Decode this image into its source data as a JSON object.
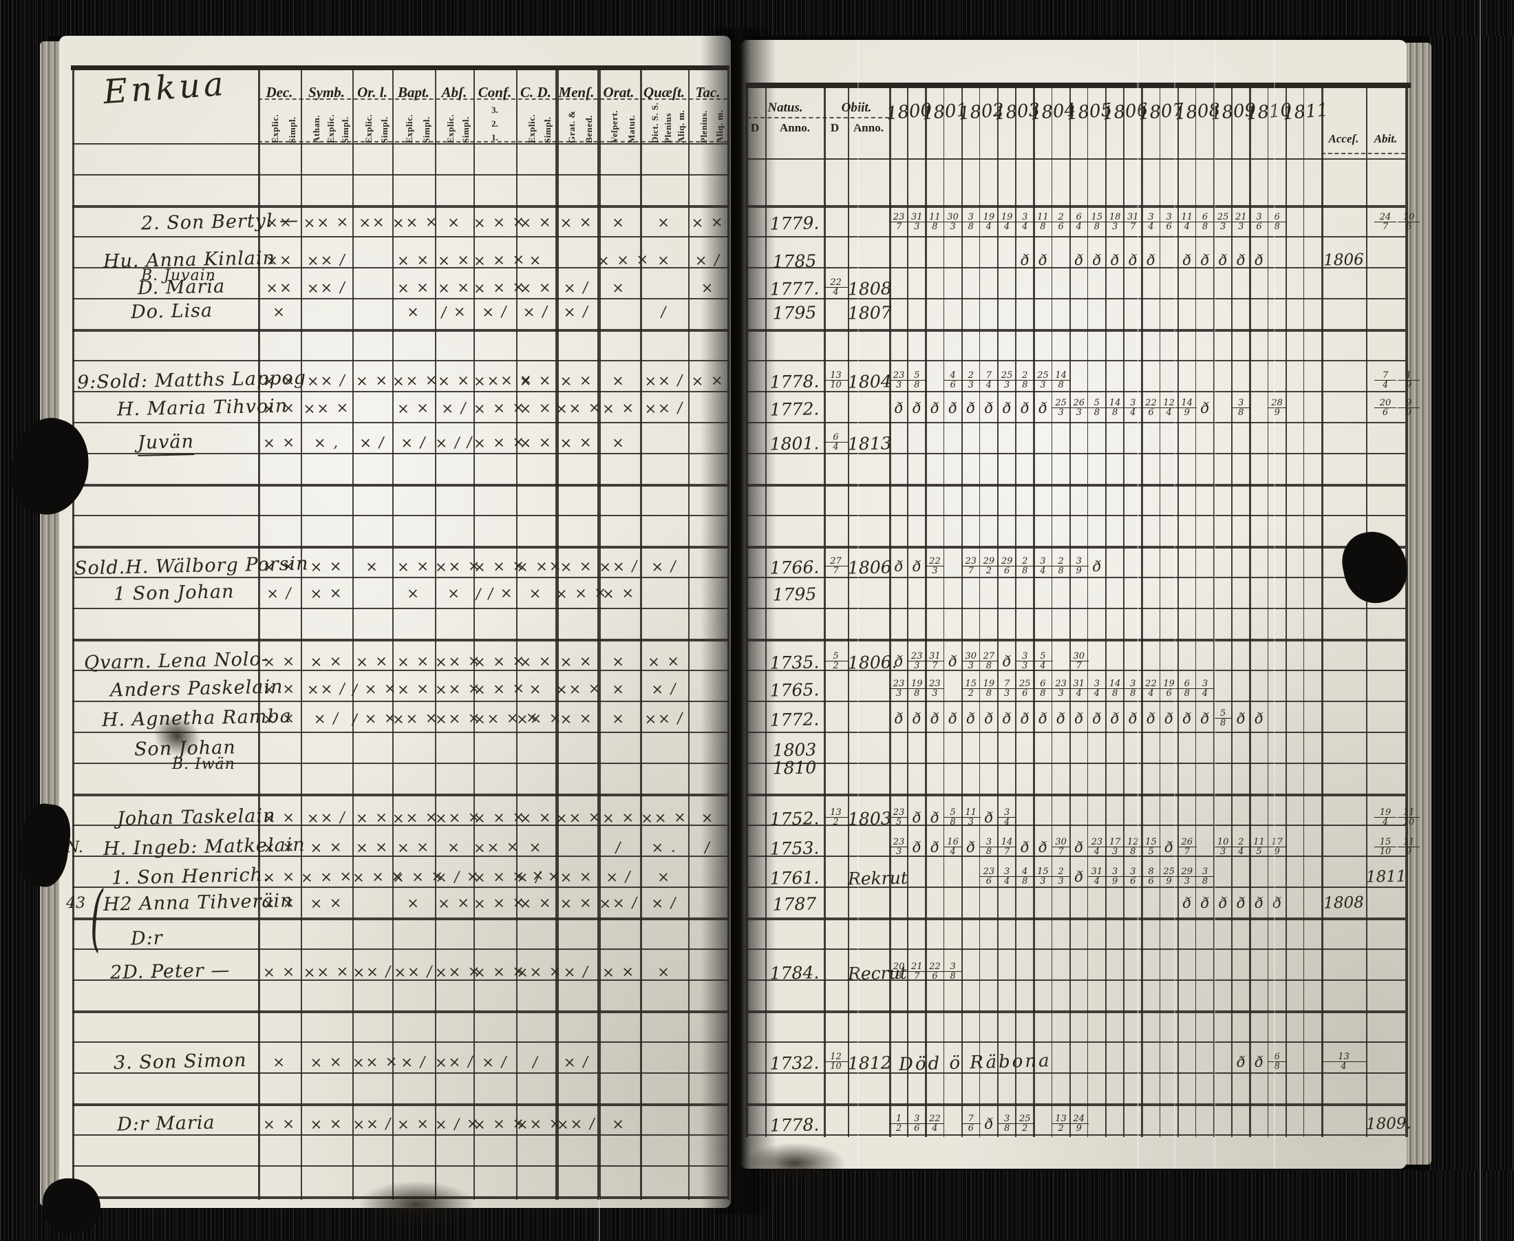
{
  "title": "Enkua",
  "left_header": {
    "columns": [
      {
        "label": "Dec.",
        "subs": [
          "Explic.",
          "Simpl."
        ]
      },
      {
        "label": "Symb.",
        "subs": [
          "Athan.",
          "Explic.",
          "Simpl."
        ]
      },
      {
        "label": "Or. l.",
        "subs": [
          "Explic.",
          "Simpl."
        ]
      },
      {
        "label": "Bapt.",
        "subs": [
          "Explic.",
          "Simpl."
        ]
      },
      {
        "label": "Abſ.",
        "subs": [
          "Explic.",
          "Simpl."
        ]
      },
      {
        "label": "Conf.",
        "subs": [
          "3.",
          "2.",
          "1."
        ]
      },
      {
        "label": "C. D.",
        "subs": [
          "Explic.",
          "Simpl."
        ]
      },
      {
        "label": "Menſ.",
        "subs": [
          "Grat. &",
          "Bened."
        ]
      },
      {
        "label": "Orat.",
        "subs": [
          "Veſpert.",
          "Matut."
        ]
      },
      {
        "label": "Quæſt.",
        "subs": [
          "Dict. S. S.",
          "Plenius",
          "Aliq. m."
        ]
      },
      {
        "label": "Tac.",
        "subs": [
          "Plenius.",
          "Aliq. m."
        ]
      }
    ]
  },
  "right_header": {
    "natus": "Natus.",
    "obiit": "Obiit.",
    "d": "D",
    "anno": "Anno.",
    "years": [
      "1800",
      "1801",
      "1802",
      "1803",
      "1804",
      "1805",
      "1806",
      "1807",
      "1808",
      "1809",
      "1810",
      "1811"
    ],
    "acces": "Acceſ.",
    "abiit": "Abit."
  },
  "decor": {
    "brace": "("
  },
  "rows": [
    {
      "name": "2. Son Bertyl —",
      "marks": [
        "××",
        "×× ×",
        "××",
        "×× ×",
        "×",
        "× × ×",
        "× ×",
        "× ×",
        "×",
        "×",
        "× ×"
      ],
      "natus": "1779.",
      "grid": "23/7 31/3 11/8 30/3 3/8 19/4 19/4 3/4 11/8 2/6 6/4 15/8 18/3 31/7 3/4 3/6 11/4 6/8 25/3 21/3 3/6 6/8",
      "abiit": "24/7 10/6",
      "edge": true
    },
    {
      "name": "Hu. Anna Kinlain",
      "name2": "B. Juvain",
      "marks": [
        "××",
        "×× /",
        "",
        "× ×",
        "× ×",
        "× × ×",
        "×",
        "",
        "× × ×",
        "×",
        "× /"
      ],
      "natus": "1785",
      "grid": ". . . . . . . ð ð . ð ð ð ð ð . ð ð ð ð ð",
      "acces": "1806"
    },
    {
      "name": "D. Maria",
      "marks": [
        "××",
        "×× /",
        "",
        "× ×",
        "× ×",
        "× × ×",
        "× ×",
        "× /",
        "×",
        "",
        "×"
      ],
      "natus": "1777.",
      "od": "22/4",
      "oa": "1808"
    },
    {
      "name": "Do. Lisa",
      "marks": [
        "×",
        "",
        "",
        "×",
        "/ ×",
        "× /",
        "× /",
        "× /",
        "",
        "/",
        ""
      ],
      "natus": "1795",
      "oa": "1807"
    },
    {
      "name": "9:Sold: Matths Lappog",
      "marks": [
        "× ×",
        "×× /",
        "× ×",
        "×× ×",
        "× ×",
        "××× ×",
        "× ×",
        "× ×",
        "×",
        "×× /",
        "× ×"
      ],
      "natus": "1778.",
      "od": "13/10",
      "oa": "1804",
      "grid": "23/3 5/8 . 4/6 2/3 7/4 25/3 2/8 25/3 14/8",
      "abiit": "7/4 1/9",
      "edge": true
    },
    {
      "name": "H. Maria Tihvoin",
      "marks": [
        "× ×",
        "×× ×",
        "",
        "× ×",
        "× /",
        "× × ×",
        "× ×",
        "×× ×",
        "× ×",
        "×× /",
        ""
      ],
      "natus": "1772.",
      "grid": "ð ð ð ð ð ð ð ð ð 25/3 26/3 5/8 14/8 3/4 22/6 12/4 14/9 ð . 3/8 . 28/9",
      "abiit": "20/6 9/9",
      "edge": true
    },
    {
      "name": "Juvän",
      "underline": true,
      "marks": [
        "× ×",
        "× ,",
        "× /",
        "× /",
        "× / /",
        "× × ×",
        "× ×",
        "× ×",
        "×",
        "",
        ""
      ],
      "natus": "1801.",
      "od": "6/4",
      "oa": "1813"
    },
    {
      "name": "Sold.H. Wälborg Porsin",
      "marks": [
        "× ×",
        "× ×",
        "×",
        "× ×",
        "×× ×",
        "× × ×",
        "× ××",
        "× ×",
        "×× /",
        "× /",
        ""
      ],
      "natus": "1766.",
      "od": "27/7",
      "oa": "1806",
      "grid": "ð ð 22/3 . 23/7 29/2 29/6 2/8 3/4 2/8 3/9 ð"
    },
    {
      "name": "1 Son Johan",
      "marks": [
        "× /",
        "× ×",
        "",
        "×",
        "×",
        "/ / ×",
        "×",
        "× × ×",
        "× ×",
        "",
        ""
      ],
      "natus": "1795"
    },
    {
      "name": "Qvarn. Lena Nolo-",
      "marks": [
        "× ×",
        "× ×",
        "× ×",
        "× ×",
        "×× ×",
        "× × ×",
        "× ×",
        "× ×",
        "×",
        "× ×",
        ""
      ],
      "natus": "1735.",
      "od": "5/2",
      "oa": "1806.",
      "grid": "ð 23/3 31/7 ð 30/3 27/8 ð 3/3 5/4 . 30/7"
    },
    {
      "name": "Anders Paskelain",
      "marks": [
        "× ×",
        "×× /",
        "/ × ×",
        "× ×",
        "×× ×",
        "× × ×",
        "×",
        "×× ×",
        "×",
        "× /",
        ""
      ],
      "natus": "1765.",
      "grid": "23/3 19/8 23/3 . 15/2 19/8 7/3 25/6 6/8 23/3 31/4 3/4 14/8 3/8 22/4 19/6 6/8 3/4"
    },
    {
      "name": "H. Agnetha Ramba",
      "marks": [
        "× ×",
        "× /",
        "/ × ×",
        "×× ×",
        "×× ×",
        "×× × ×",
        "×× ×",
        "× ×",
        "×",
        "×× /",
        ""
      ],
      "natus": "1772.",
      "grid": "ð ð ð ð ð ð ð ð ð ð ð ð ð ð ð ð ð ð 5/8 ð ð"
    },
    {
      "name": "Son Johan",
      "name2": "B. Iwän",
      "marks": [
        "",
        "",
        "",
        "",
        "",
        "",
        "",
        "",
        "",
        "",
        ""
      ],
      "natus": "1803",
      "natus2": "1810"
    },
    {
      "name": "Johan Taskelain",
      "marks": [
        "× ×",
        "×× /",
        "× ×",
        "×× ×",
        "×× ×",
        "× × ×",
        "× ×",
        "×× ×",
        "× ×",
        "×× ×",
        "×"
      ],
      "natus": "1752.",
      "od": "13/2",
      "oa": "1803",
      "grid": "23/5 ð ð 5/8 11/3 ð 3/4",
      "abiit": "19/4 11/10",
      "edge": true
    },
    {
      "name": "H. Ingeb: Matkelain",
      "margin": "N.",
      "marks": [
        "× ×",
        "× ×",
        "× ×",
        "× ×",
        "×",
        "×× ×",
        "×",
        "",
        "/",
        "× .",
        "/"
      ],
      "natus": "1753.",
      "grid": "23/3 ð ð 16/4 ð 3/8 14/7 ð ð 30/7 ð 23/4 17/3 12/8 15/5 ð 26/7 . 10/3 2/4 11/5 17/9",
      "abiit": "15/10 11/9",
      "edge": true
    },
    {
      "name": "1. Son Henrich.",
      "marks": [
        "× ×",
        "× × ×",
        "× × ×",
        "× × ×",
        "× / ×",
        "× × × ×",
        "× / ×",
        "× ×",
        "× /",
        "×",
        ""
      ],
      "natus": "1761.",
      "oa": "Rekrut",
      "oa_wide": true,
      "grid": ". . . . . 23/6 3/4 4/8 15/3 2/3 ð 31/4 3/9 3/6 8/6 25/9 29/3 3/8",
      "abiit": "1811"
    },
    {
      "name": "H2 Anna Tihveräin",
      "margin": "43",
      "brace": true,
      "marks": [
        "× ×",
        "× ×",
        "",
        "×",
        "× ×",
        "× × ×",
        "× ×",
        "× ×",
        "×× /",
        "× /",
        ""
      ],
      "natus": "1787",
      "grid": ". . . . . . . . . . . . . . . . ð ð ð ð ð ð",
      "acces": "1808"
    },
    {
      "name": "D:r",
      "marks": [
        "",
        "",
        "",
        "",
        "",
        "",
        "",
        "",
        "",
        "",
        ""
      ]
    },
    {
      "name": "2D. Peter —",
      "marks": [
        "× ×",
        "×× ×",
        "×× /",
        "×× /",
        "×× ×",
        "× × ×",
        "×× ×",
        "× /",
        "× ×",
        "×",
        ""
      ],
      "natus": "1784.",
      "oa": "Recrut",
      "oa_wide": true,
      "grid": "20/8 21/7 22/6 3/8"
    },
    {
      "name": "3. Son Simon",
      "marks": [
        "×",
        "× ×",
        "×× ×",
        "× /",
        "×× /",
        "× /",
        "/",
        "× /",
        "",
        "",
        ""
      ],
      "natus": "1732.",
      "od": "12/10",
      "oa": "1812",
      "note": "Död ö Räbona",
      "grid": ". . . . . . . . . . . . . . . . . . . ð ð 6/8",
      "acces": "13/4"
    },
    {
      "name": "D:r Maria",
      "marks": [
        "× ×",
        "× ×",
        "×× /",
        "× ×",
        "× / ×",
        "× × ×",
        "×× ×",
        "×× /",
        "×",
        "",
        ""
      ],
      "natus": "1778.",
      "grid": "1/2 3/6 22/4 . 7/6 ð 3/8 25/2 . 13/2 24/9",
      "abiit": "1809."
    }
  ]
}
